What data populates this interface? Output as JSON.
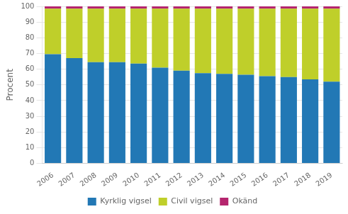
{
  "chart_data": {
    "type": "bar",
    "stacked": true,
    "ylabel": "Procent",
    "categories": [
      2006,
      2007,
      2008,
      2009,
      2010,
      2011,
      2012,
      2013,
      2014,
      2015,
      2016,
      2017,
      2018,
      2019
    ],
    "series": [
      {
        "name": "Kyrklig vigsel",
        "color": "#2278B5",
        "values": [
          69.5,
          67.0,
          64.5,
          64.5,
          63.5,
          61.0,
          59.0,
          57.5,
          57.0,
          56.5,
          55.5,
          55.0,
          53.5,
          52.0
        ]
      },
      {
        "name": "Civil vigsel",
        "color": "#BFCF2A",
        "values": [
          29.0,
          31.5,
          34.0,
          34.0,
          35.0,
          37.5,
          39.5,
          41.0,
          41.5,
          42.0,
          43.0,
          43.5,
          45.0,
          46.5
        ]
      },
      {
        "name": "Okänd",
        "color": "#B5256E",
        "values": [
          1.5,
          1.5,
          1.5,
          1.5,
          1.5,
          1.5,
          1.5,
          1.5,
          1.5,
          1.5,
          1.5,
          1.5,
          1.5,
          1.5
        ]
      }
    ],
    "ylim": [
      0,
      100
    ],
    "yticks": [
      0,
      10,
      20,
      30,
      40,
      50,
      60,
      70,
      80,
      90,
      100
    ],
    "grid": true,
    "legend": "bottom"
  }
}
